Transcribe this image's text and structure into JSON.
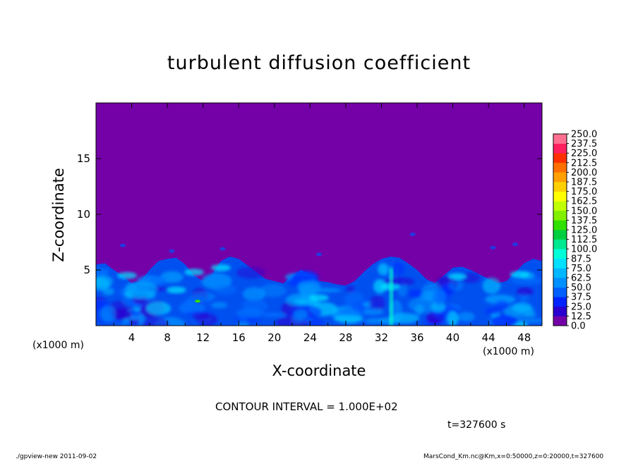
{
  "chart_data": {
    "type": "heatmap",
    "title": "turbulent diffusion coefficient",
    "xlabel": "X-coordinate",
    "ylabel": "Z-coordinate",
    "x_units": "(x1000 m)",
    "xlim": [
      0,
      50
    ],
    "ylim": [
      0,
      20
    ],
    "x_ticks": [
      "4",
      "8",
      "12",
      "16",
      "20",
      "24",
      "28",
      "32",
      "36",
      "40",
      "44",
      "48"
    ],
    "x_tick_values": [
      4,
      8,
      12,
      16,
      20,
      24,
      28,
      32,
      36,
      40,
      44,
      48
    ],
    "y_ticks": [
      "5",
      "10",
      "15"
    ],
    "y_tick_values": [
      5,
      10,
      15
    ],
    "colorbar": {
      "levels": [
        "0.0",
        "12.5",
        "25.0",
        "37.5",
        "50.0",
        "62.5",
        "75.0",
        "87.5",
        "100.0",
        "112.5",
        "125.0",
        "137.5",
        "150.0",
        "162.5",
        "175.0",
        "187.5",
        "200.0",
        "212.5",
        "225.0",
        "237.5",
        "250.0"
      ],
      "colors": [
        "#7400a8",
        "#2a00d0",
        "#0024ff",
        "#0060ff",
        "#0090ff",
        "#00b8ff",
        "#00e0ff",
        "#00ffd8",
        "#00e890",
        "#00d040",
        "#30e000",
        "#80f000",
        "#c0ff00",
        "#ffff00",
        "#ffd000",
        "#ffa000",
        "#ff7000",
        "#ff3000",
        "#ff2060",
        "#ff7090"
      ]
    },
    "background_value_color": "#7400a8",
    "mixed_layer_top_km": [
      5.5,
      5.6,
      5.0,
      4.5,
      3.8,
      4.0,
      5.0,
      5.8,
      6.0,
      6.1,
      5.5,
      4.5,
      4.0,
      4.6,
      5.8,
      6.2,
      6.0,
      5.4,
      4.8,
      4.2,
      4.0,
      3.8,
      4.5,
      5.0,
      4.6,
      4.0,
      3.9,
      3.7,
      3.6,
      4.0,
      4.8,
      5.5,
      6.0,
      6.2,
      6.1,
      5.6,
      5.0,
      4.2,
      3.8,
      4.5,
      5.2,
      5.3,
      5.0,
      4.6,
      4.2,
      3.8,
      4.0,
      4.8,
      5.6,
      6.0,
      5.8
    ]
  },
  "contour_interval": "CONTOUR INTERVAL = 1.000E+02",
  "time_label": "t=327600 s",
  "footer": {
    "left": "./gpview-new   2011-09-02",
    "right": "MarsCond_Km.nc@Km,x=0:50000,z=0:20000,t=327600"
  }
}
